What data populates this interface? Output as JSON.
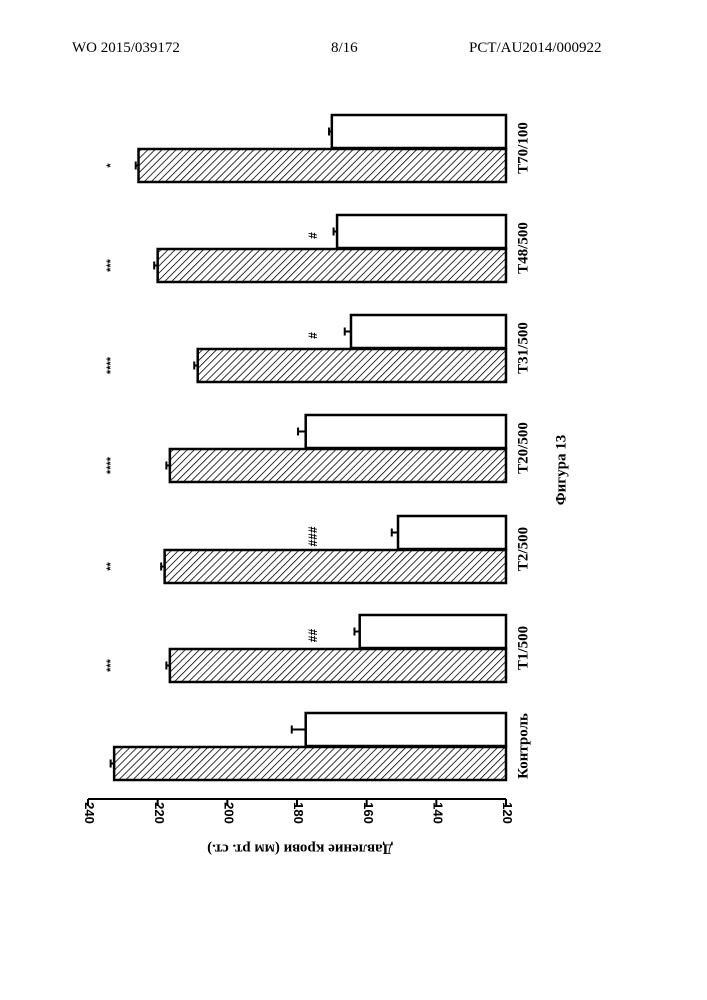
{
  "header": {
    "publication_number": "WO 2015/039172",
    "page": "8/16",
    "application_number": "PCT/AU2014/000922"
  },
  "chart_data": {
    "type": "bar",
    "orientation": "horizontal-rotated",
    "caption": "Фигура 13",
    "ylabel": "Давление крови (мм рт. ст.)",
    "xlabel": "",
    "ylim": [
      120,
      240
    ],
    "yticks": [
      120,
      140,
      160,
      180,
      200,
      220,
      240
    ],
    "grid": false,
    "categories": [
      "Контроль",
      "T1/500",
      "T2/500",
      "T20/500",
      "T31/500",
      "T48/500",
      "T70/100"
    ],
    "series": [
      {
        "pattern": "hatched",
        "values": [
          232.5,
          216.5,
          218.0,
          216.5,
          208.5,
          220.0,
          225.5
        ],
        "errors": [
          1.0,
          1.0,
          1.0,
          1.0,
          1.0,
          1.0,
          0.8
        ],
        "significance": [
          "",
          "***",
          "**",
          "****",
          "****",
          "***",
          "*"
        ]
      },
      {
        "pattern": "open",
        "values": [
          177.5,
          162.0,
          151.0,
          177.5,
          164.5,
          168.5,
          170.0
        ],
        "errors": [
          4.0,
          1.5,
          1.8,
          2.2,
          1.8,
          1.0,
          0.8
        ],
        "significance": [
          "",
          "##",
          "###",
          "",
          "#",
          "#",
          ""
        ]
      }
    ]
  }
}
